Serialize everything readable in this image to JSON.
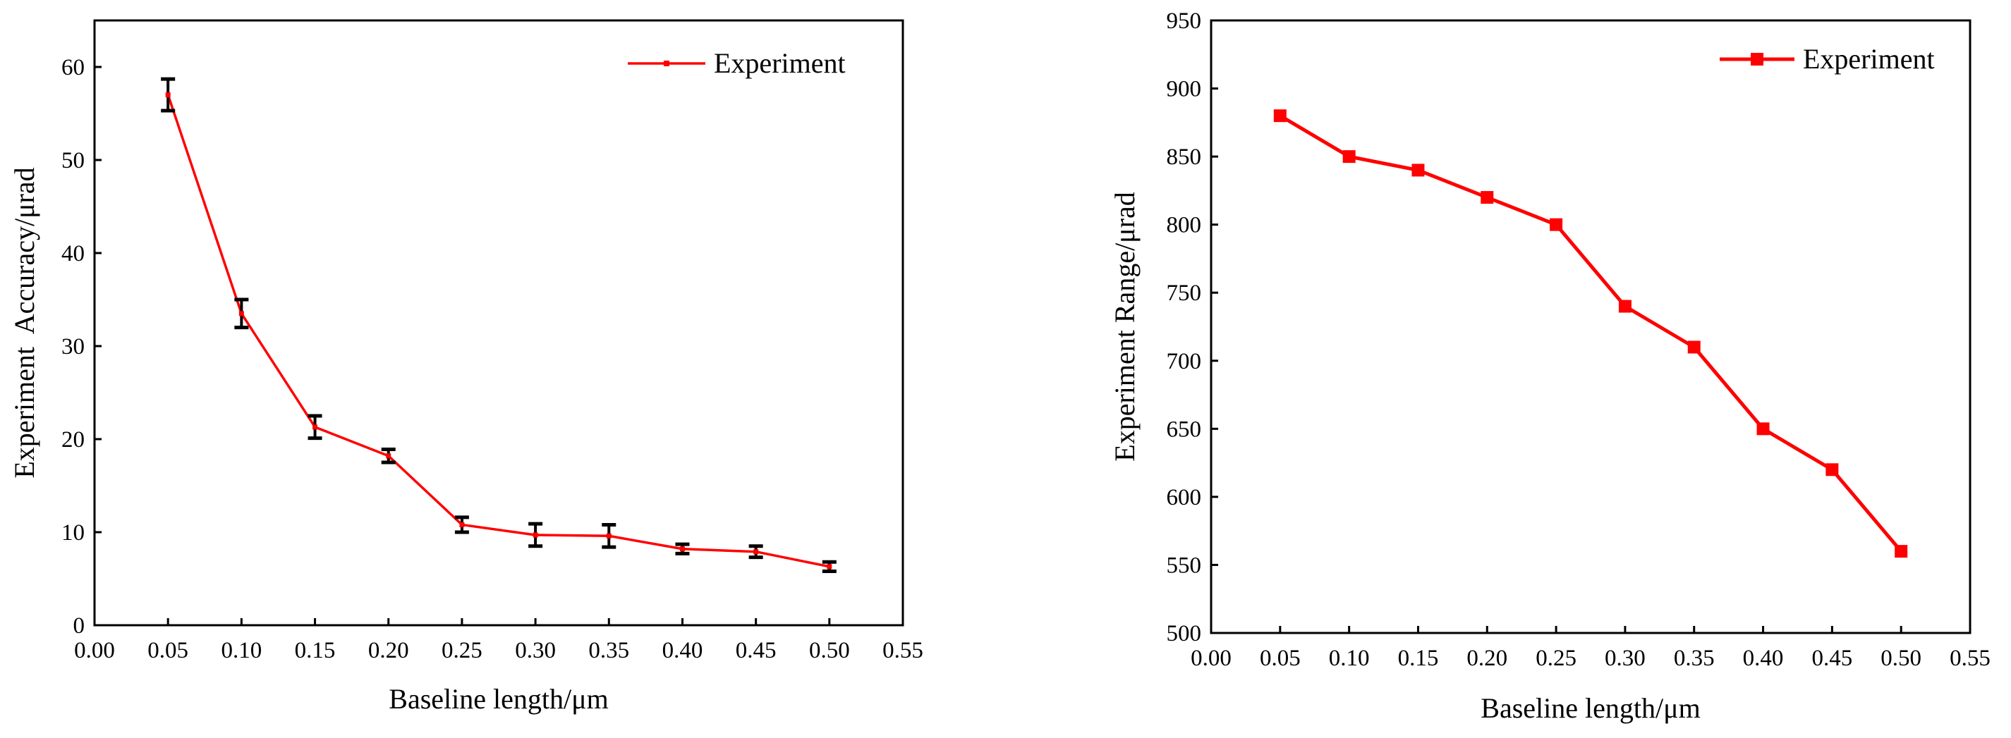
{
  "chart_data": [
    {
      "type": "line",
      "title": "",
      "xlabel": "Baseline length/μm",
      "ylabel": "Experiment  Accuracy/μrad",
      "xlim": [
        0.0,
        0.55
      ],
      "ylim": [
        0,
        65
      ],
      "xticks": [
        "0.00",
        "0.05",
        "0.10",
        "0.15",
        "0.20",
        "0.25",
        "0.30",
        "0.35",
        "0.40",
        "0.45",
        "0.50",
        "0.55"
      ],
      "yticks": [
        "0",
        "10",
        "20",
        "30",
        "40",
        "50",
        "60"
      ],
      "legend_position": "top-right",
      "series": [
        {
          "name": "Experiment",
          "color": "#ff0000",
          "marker": "small-square",
          "x": [
            0.05,
            0.1,
            0.15,
            0.2,
            0.25,
            0.3,
            0.35,
            0.4,
            0.45,
            0.5
          ],
          "y": [
            57.0,
            33.5,
            21.3,
            18.2,
            10.8,
            9.7,
            9.6,
            8.2,
            7.9,
            6.3
          ],
          "error": [
            1.7,
            1.5,
            1.2,
            0.7,
            0.8,
            1.2,
            1.2,
            0.5,
            0.6,
            0.5
          ]
        }
      ]
    },
    {
      "type": "line",
      "title": "",
      "xlabel": "Baseline length/μm",
      "ylabel": "Experiment Range/μrad",
      "xlim": [
        0.0,
        0.55
      ],
      "ylim": [
        500,
        950
      ],
      "xticks": [
        "0.00",
        "0.05",
        "0.10",
        "0.15",
        "0.20",
        "0.25",
        "0.30",
        "0.35",
        "0.40",
        "0.45",
        "0.50",
        "0.55"
      ],
      "yticks": [
        "500",
        "550",
        "600",
        "650",
        "700",
        "750",
        "800",
        "850",
        "900",
        "950"
      ],
      "legend_position": "top-right",
      "series": [
        {
          "name": "Experiment",
          "color": "#ff0000",
          "marker": "square",
          "x": [
            0.05,
            0.1,
            0.15,
            0.2,
            0.25,
            0.3,
            0.35,
            0.4,
            0.45,
            0.5
          ],
          "y": [
            880,
            850,
            840,
            820,
            800,
            740,
            710,
            650,
            620,
            560
          ]
        }
      ]
    }
  ]
}
